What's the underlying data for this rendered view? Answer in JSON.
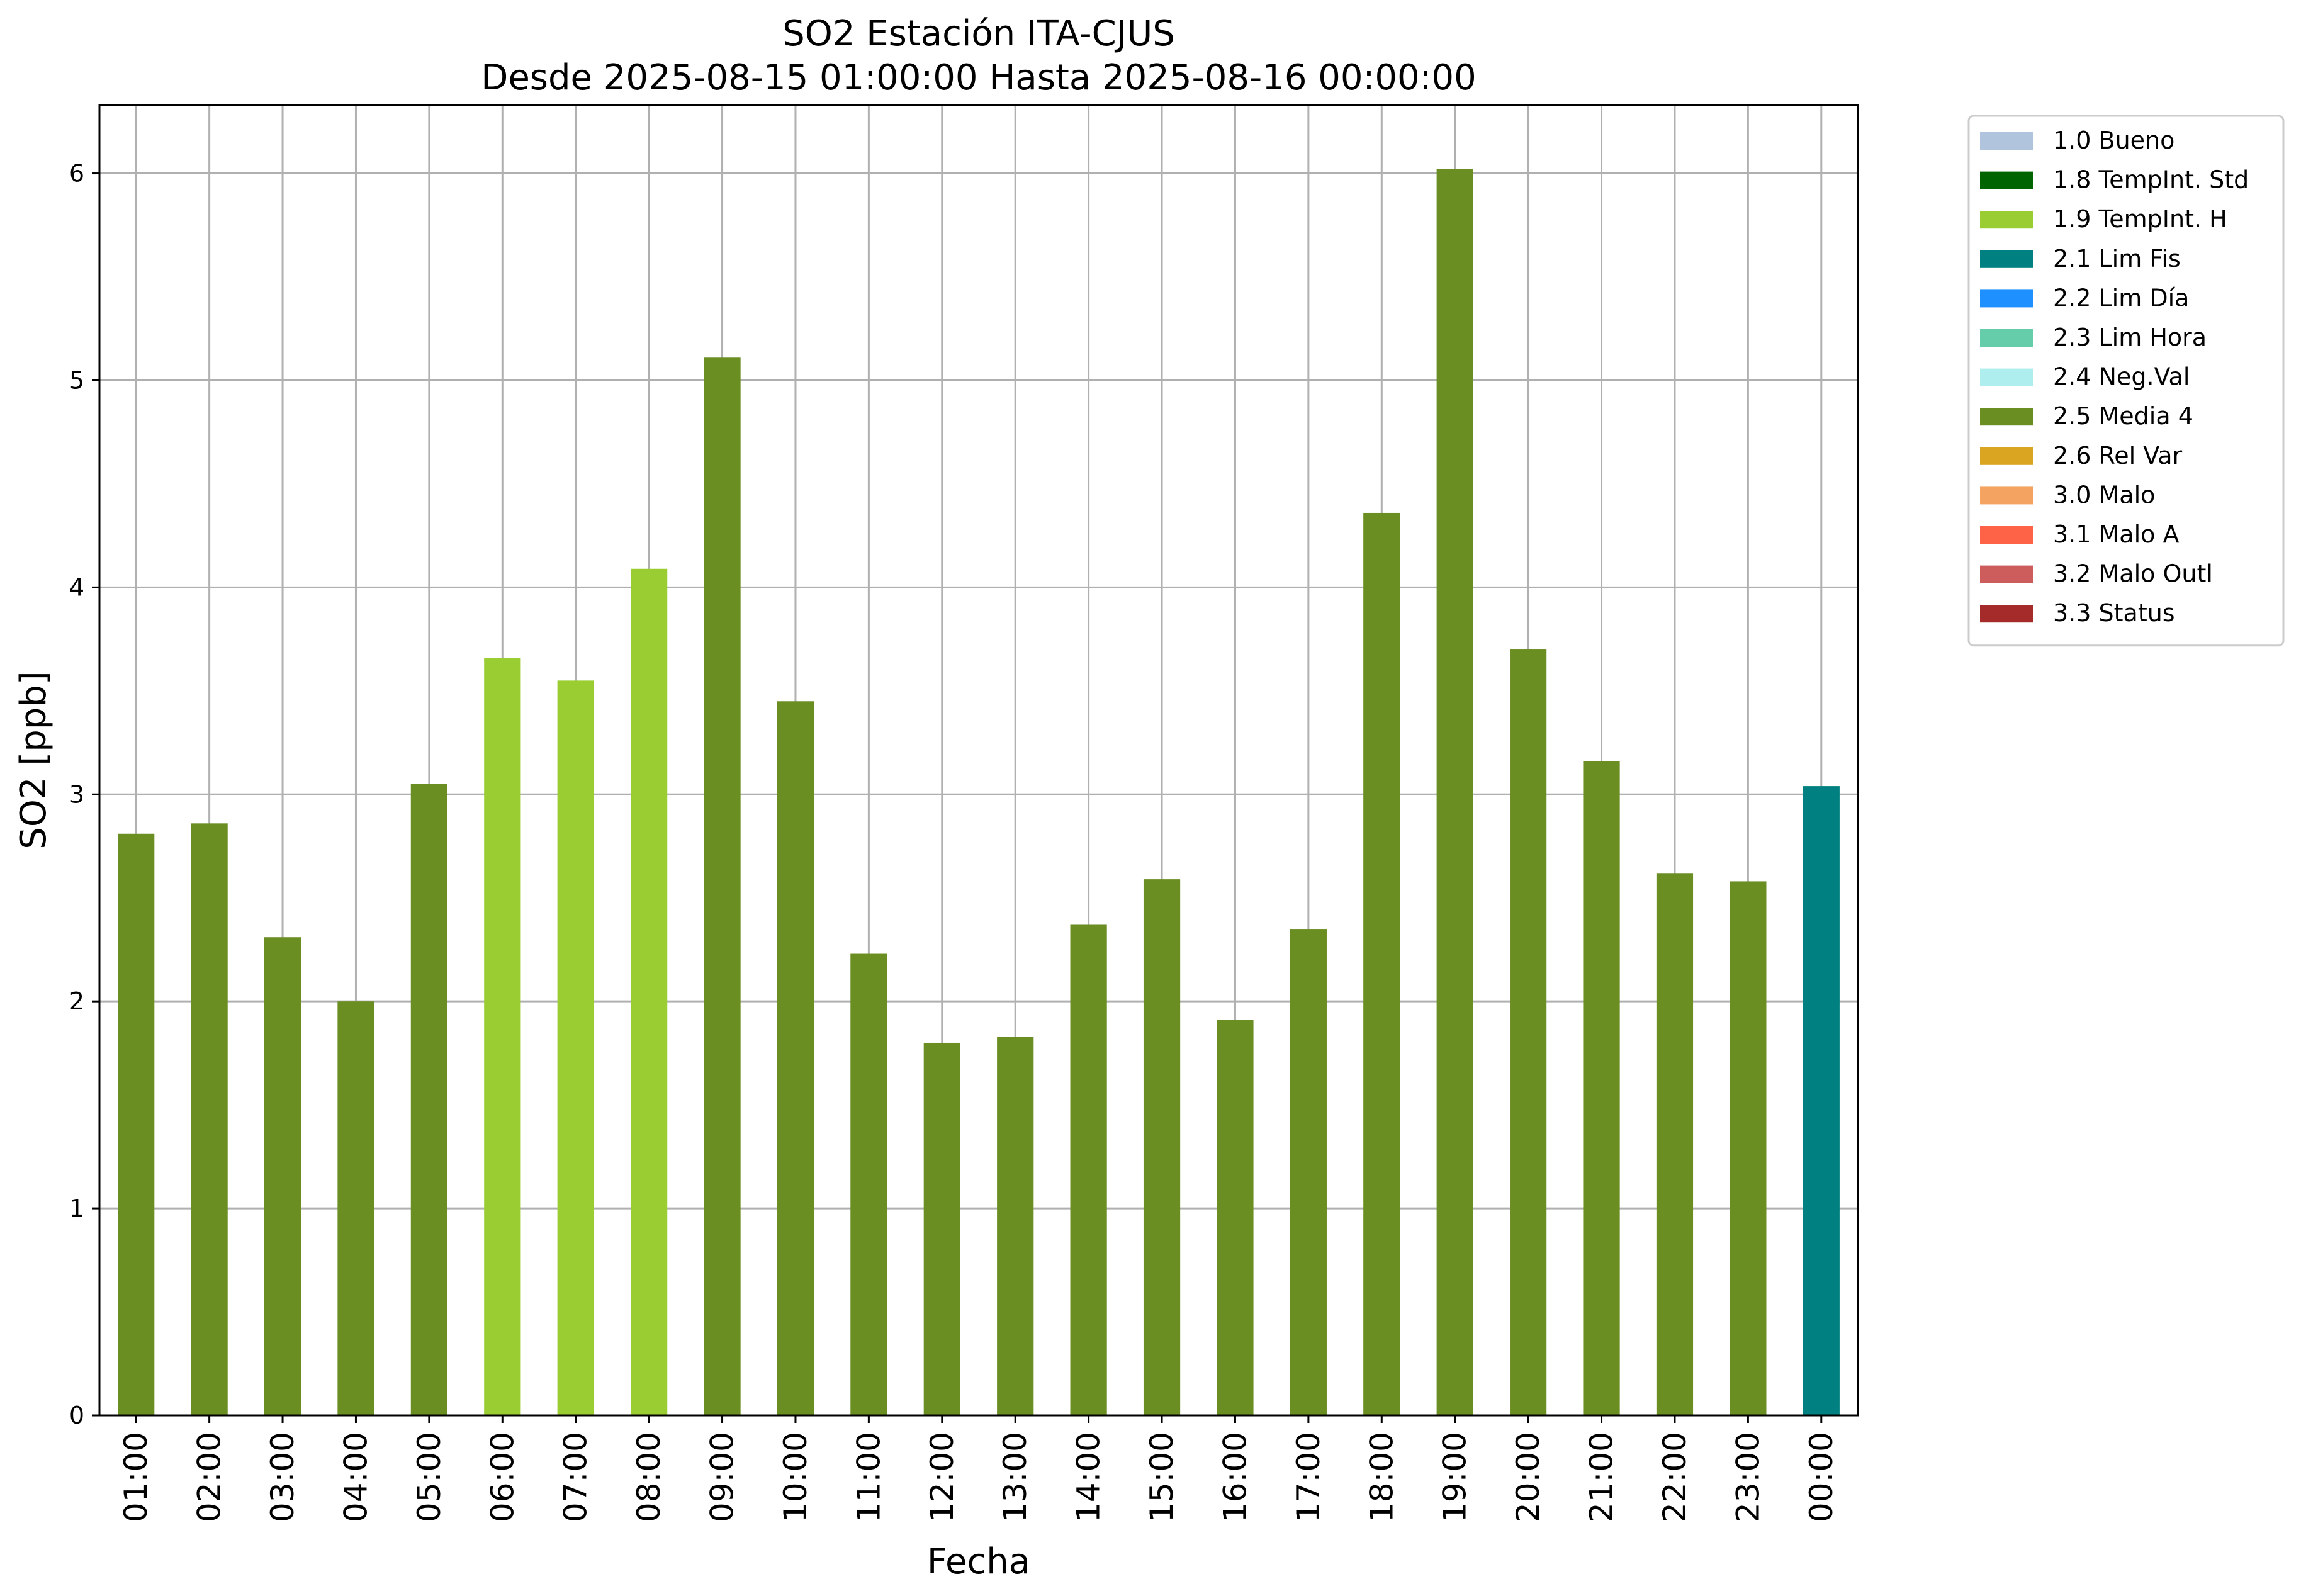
{
  "chart_data": {
    "type": "bar",
    "title": "SO2 Estación ITA-CJUS",
    "subtitle": "Desde 2025-08-15 01:00:00 Hasta 2025-08-16 00:00:00",
    "xlabel": "Fecha",
    "ylabel": "SO2 [ppb]",
    "ylim": [
      0,
      6.33
    ],
    "yticks": [
      "0",
      "1",
      "2",
      "3",
      "4",
      "5",
      "6"
    ],
    "grid": true,
    "legend_position": "outside-top-right",
    "categories": [
      "01:00",
      "02:00",
      "03:00",
      "04:00",
      "05:00",
      "06:00",
      "07:00",
      "08:00",
      "09:00",
      "10:00",
      "11:00",
      "12:00",
      "13:00",
      "14:00",
      "15:00",
      "16:00",
      "17:00",
      "18:00",
      "19:00",
      "20:00",
      "21:00",
      "22:00",
      "23:00",
      "00:00"
    ],
    "values": [
      2.81,
      2.86,
      2.31,
      2.0,
      3.05,
      3.66,
      3.55,
      4.09,
      5.11,
      3.45,
      2.23,
      1.8,
      1.83,
      2.37,
      2.59,
      1.91,
      2.35,
      4.36,
      6.02,
      3.7,
      3.16,
      2.62,
      2.58,
      3.04
    ],
    "flags": [
      "2.5",
      "2.5",
      "2.5",
      "2.5",
      "2.5",
      "1.9",
      "1.9",
      "1.9",
      "2.5",
      "2.5",
      "2.5",
      "2.5",
      "2.5",
      "2.5",
      "2.5",
      "2.5",
      "2.5",
      "2.5",
      "2.5",
      "2.5",
      "2.5",
      "2.5",
      "2.5",
      "2.1"
    ],
    "legend": [
      {
        "code": "1.0",
        "label": "1.0 Bueno",
        "color": "#b0c4de"
      },
      {
        "code": "1.8",
        "label": "1.8 TempInt. Std",
        "color": "#006400"
      },
      {
        "code": "1.9",
        "label": "1.9 TempInt. H",
        "color": "#9acd32"
      },
      {
        "code": "2.1",
        "label": "2.1 Lim Fis",
        "color": "#008080"
      },
      {
        "code": "2.2",
        "label": "2.2 Lim Día",
        "color": "#1e90ff"
      },
      {
        "code": "2.3",
        "label": "2.3 Lim Hora",
        "color": "#66cdaa"
      },
      {
        "code": "2.4",
        "label": "2.4 Neg.Val",
        "color": "#afeeee"
      },
      {
        "code": "2.5",
        "label": "2.5 Media 4",
        "color": "#6b8e23"
      },
      {
        "code": "2.6",
        "label": "2.6 Rel Var",
        "color": "#daa520"
      },
      {
        "code": "3.0",
        "label": "3.0 Malo",
        "color": "#f4a460"
      },
      {
        "code": "3.1",
        "label": "3.1 Malo A",
        "color": "#ff6347"
      },
      {
        "code": "3.2",
        "label": "3.2 Malo Outl",
        "color": "#cd5c5c"
      },
      {
        "code": "3.3",
        "label": "3.3 Status",
        "color": "#a52a2a"
      }
    ]
  }
}
